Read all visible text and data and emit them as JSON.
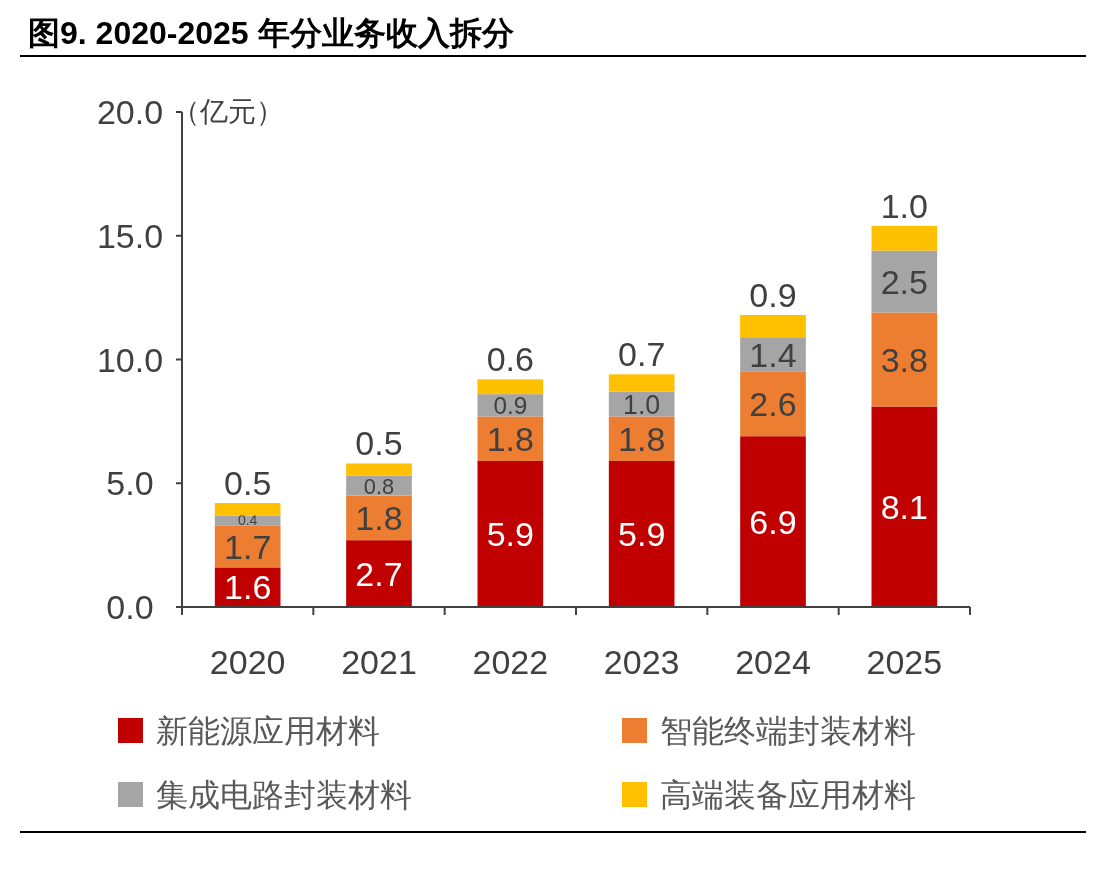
{
  "chart_data": {
    "type": "bar",
    "title": "图9. 2020-2025 年分业务收入拆分",
    "ylabel": "（亿元）",
    "categories": [
      "2020",
      "2021",
      "2022",
      "2023",
      "2024",
      "2025"
    ],
    "stacked": true,
    "legend": "bottom",
    "grid": false,
    "ylim": [
      0,
      20
    ],
    "yticks": [
      {
        "value": 0,
        "label": "0.0"
      },
      {
        "value": 5,
        "label": "5.0"
      },
      {
        "value": 10,
        "label": "10.0"
      },
      {
        "value": 15,
        "label": "15.0"
      },
      {
        "value": 20,
        "label": "20.0"
      }
    ],
    "series": [
      {
        "name": "新能源应用材料",
        "color": "#c00000",
        "values": [
          1.6,
          2.7,
          5.9,
          5.9,
          6.9,
          8.1
        ],
        "value_labels": [
          "1.6",
          "2.7",
          "5.9",
          "5.9",
          "6.9",
          "8.1"
        ]
      },
      {
        "name": "智能终端封装材料",
        "color": "#ed7d31",
        "values": [
          1.7,
          1.8,
          1.8,
          1.8,
          2.6,
          3.8
        ],
        "value_labels": [
          "1.7",
          "1.8",
          "1.8",
          "1.8",
          "2.6",
          "3.8"
        ]
      },
      {
        "name": "集成电路封装材料",
        "color": "#a5a5a5",
        "values": [
          0.4,
          0.8,
          0.9,
          1.0,
          1.4,
          2.5
        ],
        "value_labels": [
          "0.4",
          "0.8",
          "0.9",
          "1.0",
          "1.4",
          "2.5"
        ]
      },
      {
        "name": "高端装备应用材料",
        "color": "#ffc000",
        "values": [
          0.5,
          0.5,
          0.6,
          0.7,
          0.9,
          1.0
        ],
        "value_labels": [
          "0.5",
          "0.5",
          "0.6",
          "0.7",
          "0.9",
          "1.0"
        ]
      }
    ]
  }
}
